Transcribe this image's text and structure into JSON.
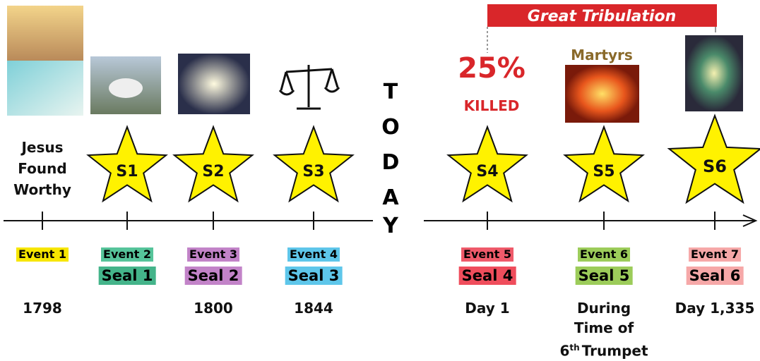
{
  "banner": "Great Tribulation",
  "today": [
    "T",
    "O",
    "D",
    "A",
    "Y"
  ],
  "note_left": [
    "Jesus",
    "Found",
    "Worthy"
  ],
  "note_killed": {
    "percent": "25%",
    "text": "KILLED"
  },
  "note_martyrs": "Martyrs",
  "events": [
    {
      "label": "Event 1",
      "date": "1798"
    },
    {
      "label": "Event 2",
      "seal": "Seal 1",
      "star": "S1"
    },
    {
      "label": "Event 3",
      "seal": "Seal 2",
      "star": "S2",
      "date": "1800"
    },
    {
      "label": "Event 4",
      "seal": "Seal 3",
      "star": "S3",
      "date": "1844"
    },
    {
      "label": "Event 5",
      "seal": "Seal 4",
      "star": "S4",
      "date": "Day 1"
    },
    {
      "label": "Event 6",
      "seal": "Seal 5",
      "star": "S5",
      "date_lines": [
        "During",
        "Time of"
      ],
      "ordinal": "6",
      "suffix": "th",
      "last": "Trumpet"
    },
    {
      "label": "Event 7",
      "seal": "Seal 6",
      "star": "S6",
      "date": "Day 1,335"
    }
  ]
}
